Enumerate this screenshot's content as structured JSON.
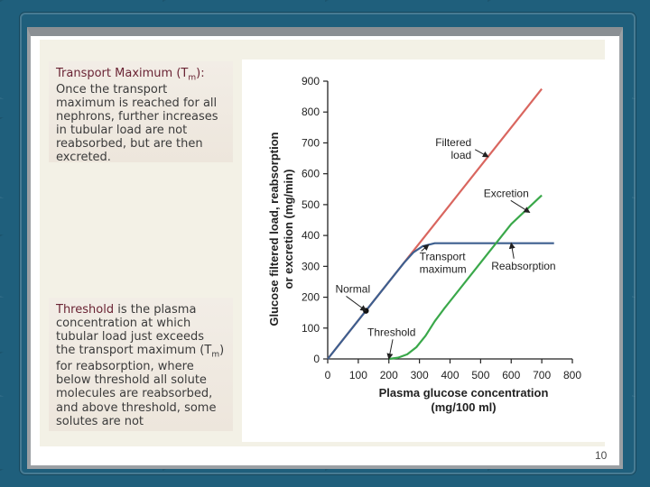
{
  "slide": {
    "page_number": "10",
    "tm_box": {
      "title_pre": "Transport Maximum (T",
      "title_sub": "m",
      "title_post": "):",
      "body": "Once the transport maximum is reached for all nephrons, further increases in tubular load are not reabsorbed, but are then excreted."
    },
    "threshold_box": {
      "term": "Threshold",
      "body_a": " is the plasma concentration at which tubular load just exceeds the transport maximum (T",
      "sub": "m",
      "body_b": ") for reabsorption, where below threshold all solute molecules are reabsorbed, and above threshold, some solutes are not"
    }
  },
  "chart_data": {
    "type": "line",
    "xlabel": [
      "Plasma glucose concentration",
      "(mg/100 ml)"
    ],
    "ylabel": [
      "Glucose filtered load, reabsorption",
      "or excretion (mg/min)"
    ],
    "xlim": [
      0,
      800
    ],
    "ylim": [
      0,
      900
    ],
    "x_ticks": [
      0,
      100,
      200,
      300,
      400,
      500,
      600,
      700,
      800
    ],
    "y_ticks": [
      0,
      100,
      200,
      300,
      400,
      500,
      600,
      700,
      800,
      900
    ],
    "grid": false,
    "series": [
      {
        "name": "Filtered load",
        "color": "#d9665f",
        "points": [
          [
            0,
            0
          ],
          [
            100,
            125
          ],
          [
            200,
            250
          ],
          [
            300,
            375
          ],
          [
            400,
            500
          ],
          [
            500,
            625
          ],
          [
            600,
            750
          ],
          [
            700,
            875
          ]
        ]
      },
      {
        "name": "Reabsorption",
        "color": "#3d5f8f",
        "points": [
          [
            0,
            0
          ],
          [
            100,
            125
          ],
          [
            200,
            250
          ],
          [
            250,
            312
          ],
          [
            280,
            345
          ],
          [
            310,
            365
          ],
          [
            350,
            375
          ],
          [
            400,
            375
          ],
          [
            500,
            375
          ],
          [
            600,
            375
          ],
          [
            700,
            375
          ],
          [
            740,
            375
          ]
        ]
      },
      {
        "name": "Excretion",
        "color": "#3aa84a",
        "points": [
          [
            200,
            0
          ],
          [
            230,
            4
          ],
          [
            260,
            15
          ],
          [
            290,
            38
          ],
          [
            320,
            75
          ],
          [
            350,
            122
          ],
          [
            380,
            162
          ],
          [
            400,
            187
          ],
          [
            500,
            312
          ],
          [
            600,
            437
          ],
          [
            700,
            530
          ]
        ]
      }
    ],
    "annotations": [
      {
        "text": [
          "Filtered",
          "load"
        ],
        "x": 470,
        "y": 690,
        "arrow_to": [
          525,
          655
        ],
        "anchor": "end"
      },
      {
        "text": [
          "Excretion"
        ],
        "x": 510,
        "y": 525,
        "arrow_to": [
          660,
          475
        ],
        "anchor": "start"
      },
      {
        "text": [
          "Transport",
          "maximum"
        ],
        "x": 300,
        "y": 320,
        "arrow_to": [
          330,
          370
        ],
        "anchor": "start"
      },
      {
        "text": [
          "Reabsorption"
        ],
        "x": 535,
        "y": 290,
        "arrow_to": [
          600,
          375
        ],
        "anchor": "start"
      },
      {
        "text": [
          "Normal"
        ],
        "x": 25,
        "y": 215,
        "arrow_to": [
          125,
          156
        ],
        "anchor": "start"
      },
      {
        "text": [
          "Threshold"
        ],
        "x": 130,
        "y": 75,
        "arrow_to": [
          200,
          0
        ],
        "anchor": "start"
      }
    ],
    "markers": [
      {
        "label": "Normal",
        "x": 125,
        "y": 156
      }
    ]
  }
}
